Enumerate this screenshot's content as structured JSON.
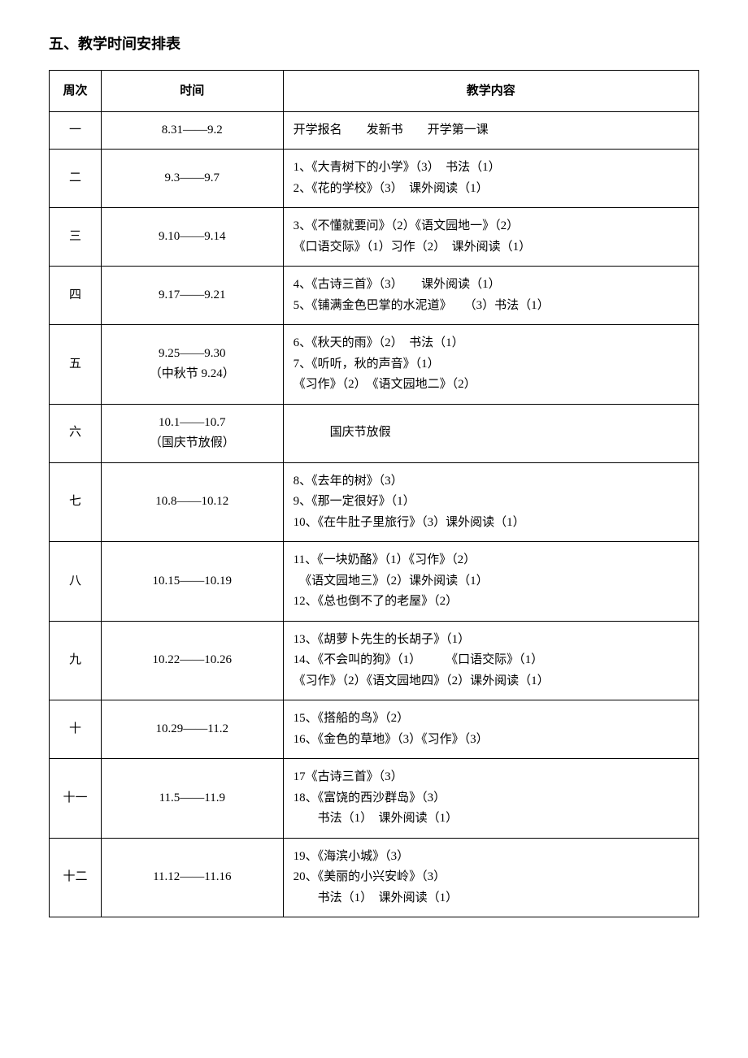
{
  "section_title": "五、教学时间安排表",
  "headers": {
    "week": "周次",
    "time": "时间",
    "content": "教学内容"
  },
  "rows": [
    {
      "week": "一",
      "time": "8.31——9.2",
      "content": "开学报名　　发新书　　开学第一课"
    },
    {
      "week": "二",
      "time": "9.3——9.7",
      "content": "1、《大青树下的小学》（3）　书法（1）\n2、《花的学校》（3）　课外阅读（1）"
    },
    {
      "week": "三",
      "time": "9.10——9.14",
      "content": "3、《不懂就要问》（2）《语文园地一》（2）\n《口语交际》（1）习作（2）　课外阅读（1）"
    },
    {
      "week": "四",
      "time": "9.17——9.21",
      "content": "4、《古诗三首》（3）　　课外阅读（1）\n5、《铺满金色巴掌的水泥道》　　（3）书法（1）"
    },
    {
      "week": "五",
      "time": "9.25——9.30\n（中秋节 9.24）",
      "content": "6、《秋天的雨》（2）　书法（1）\n7、《听听，秋的声音》（1）\n《习作》（2）　《语文园地二》（2）"
    },
    {
      "week": "六",
      "time": "10.1——10.7\n（国庆节放假）",
      "content": "　　　国庆节放假"
    },
    {
      "week": "七",
      "time": "10.8——10.12",
      "content": "8、《去年的树》（3）\n9、《那一定很好》（1）\n10、《在牛肚子里旅行》（3）课外阅读（1）"
    },
    {
      "week": "八",
      "time": "10.15——10.19",
      "content": "11、《一块奶酪》（1）《习作》（2）\n　《语文园地三》（2）课外阅读（1）\n12、《总也倒不了的老屋》（2）"
    },
    {
      "week": "九",
      "time": "10.22——10.26",
      "content": "13、《胡萝卜先生的长胡子》（1）\n14、《不会叫的狗》（1）　　　《口语交际》（1）\n《习作》（2）《语文园地四》（2）课外阅读（1）"
    },
    {
      "week": "十",
      "time": "10.29——11.2",
      "content": "15、《搭船的鸟》（2）\n16、《金色的草地》（3）《习作》（3）"
    },
    {
      "week": "十一",
      "time": "11.5——11.9",
      "content": "17《古诗三首》（3）\n18、《富饶的西沙群岛》（3）\n　　书法（1）　课外阅读（1）"
    },
    {
      "week": "十二",
      "time": "11.12——11.16",
      "content": "19、《海滨小城》（3）\n20、《美丽的小兴安岭》（3）\n　　书法（1）　课外阅读（1）"
    }
  ]
}
